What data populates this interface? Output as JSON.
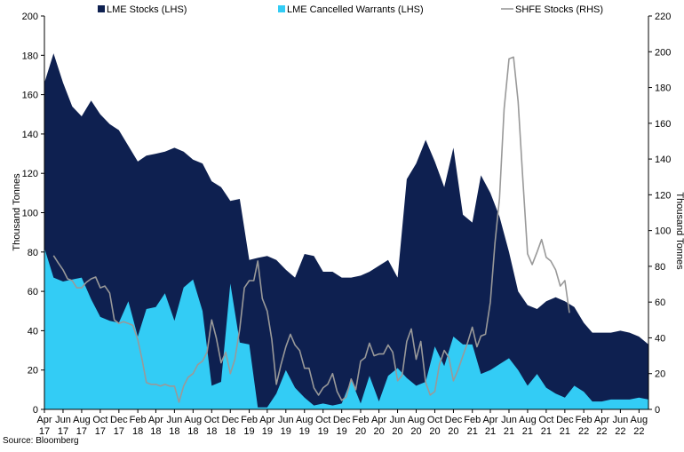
{
  "chart_data": {
    "type": "area",
    "source": "Source: Bloomberg",
    "ylabel_left": "Thousand Tonnes",
    "ylabel_right": "Thousand Tonnes",
    "ylim_left": [
      0,
      200
    ],
    "ylim_right": [
      0,
      220
    ],
    "yticks_left": [
      "0",
      "20",
      "40",
      "60",
      "80",
      "100",
      "120",
      "140",
      "160",
      "180",
      "200"
    ],
    "yticks_right": [
      "0",
      "20",
      "40",
      "60",
      "80",
      "100",
      "120",
      "140",
      "160",
      "180",
      "200",
      "220"
    ],
    "xtick_labels": [
      [
        "Apr",
        "17"
      ],
      [
        "Jun",
        "17"
      ],
      [
        "Aug",
        "17"
      ],
      [
        "Oct",
        "17"
      ],
      [
        "Dec",
        "17"
      ],
      [
        "Feb",
        "18"
      ],
      [
        "Apr",
        "18"
      ],
      [
        "Jun",
        "18"
      ],
      [
        "Aug",
        "18"
      ],
      [
        "Oct",
        "18"
      ],
      [
        "Dec",
        "18"
      ],
      [
        "Feb",
        "19"
      ],
      [
        "Apr",
        "19"
      ],
      [
        "Jun",
        "19"
      ],
      [
        "Aug",
        "19"
      ],
      [
        "Oct",
        "19"
      ],
      [
        "Dec",
        "19"
      ],
      [
        "Feb",
        "20"
      ],
      [
        "Apr",
        "20"
      ],
      [
        "Jun",
        "20"
      ],
      [
        "Aug",
        "20"
      ],
      [
        "Oct",
        "20"
      ],
      [
        "Dec",
        "20"
      ],
      [
        "Feb",
        "21"
      ],
      [
        "Apr",
        "21"
      ],
      [
        "Jun",
        "21"
      ],
      [
        "Aug",
        "21"
      ],
      [
        "Oct",
        "21"
      ],
      [
        "Dec",
        "21"
      ],
      [
        "Feb",
        "22"
      ],
      [
        "Apr",
        "22"
      ],
      [
        "Jun",
        "22"
      ],
      [
        "Aug",
        "22"
      ]
    ],
    "x_start": "2017-04",
    "x_end": "2022-09",
    "grid": false,
    "legend_position": "top",
    "series": [
      {
        "name": "LME Stocks (LHS)",
        "type": "area",
        "axis": "left",
        "color": "#0e2050",
        "points": [
          [
            "2017-04-01",
            166
          ],
          [
            "2017-05-01",
            181
          ],
          [
            "2017-06-01",
            166
          ],
          [
            "2017-07-01",
            154
          ],
          [
            "2017-08-01",
            149
          ],
          [
            "2017-09-01",
            157
          ],
          [
            "2017-10-01",
            150
          ],
          [
            "2017-11-01",
            145
          ],
          [
            "2017-12-01",
            142
          ],
          [
            "2018-01-01",
            134
          ],
          [
            "2018-02-01",
            126
          ],
          [
            "2018-03-01",
            129
          ],
          [
            "2018-04-01",
            130
          ],
          [
            "2018-05-01",
            131
          ],
          [
            "2018-06-01",
            133
          ],
          [
            "2018-07-01",
            131
          ],
          [
            "2018-08-01",
            127
          ],
          [
            "2018-09-01",
            125
          ],
          [
            "2018-10-01",
            116
          ],
          [
            "2018-11-01",
            113
          ],
          [
            "2018-12-01",
            106
          ],
          [
            "2019-01-01",
            107
          ],
          [
            "2019-02-01",
            76
          ],
          [
            "2019-03-01",
            77
          ],
          [
            "2019-04-01",
            78
          ],
          [
            "2019-05-01",
            76
          ],
          [
            "2019-06-01",
            71
          ],
          [
            "2019-07-01",
            67
          ],
          [
            "2019-08-01",
            79
          ],
          [
            "2019-09-01",
            78
          ],
          [
            "2019-10-01",
            70
          ],
          [
            "2019-11-01",
            70
          ],
          [
            "2019-12-01",
            67
          ],
          [
            "2020-01-01",
            67
          ],
          [
            "2020-02-01",
            68
          ],
          [
            "2020-03-01",
            70
          ],
          [
            "2020-04-01",
            73
          ],
          [
            "2020-05-01",
            76
          ],
          [
            "2020-06-01",
            67
          ],
          [
            "2020-07-01",
            117
          ],
          [
            "2020-08-01",
            125
          ],
          [
            "2020-09-01",
            137
          ],
          [
            "2020-10-01",
            126
          ],
          [
            "2020-11-01",
            113
          ],
          [
            "2020-12-01",
            133
          ],
          [
            "2021-01-01",
            99
          ],
          [
            "2021-02-01",
            95
          ],
          [
            "2021-03-01",
            119
          ],
          [
            "2021-04-01",
            110
          ],
          [
            "2021-05-01",
            98
          ],
          [
            "2021-06-01",
            80
          ],
          [
            "2021-07-01",
            60
          ],
          [
            "2021-08-01",
            53
          ],
          [
            "2021-09-01",
            51
          ],
          [
            "2021-10-01",
            55
          ],
          [
            "2021-11-01",
            57
          ],
          [
            "2021-12-01",
            55
          ],
          [
            "2022-01-01",
            52
          ],
          [
            "2022-02-01",
            44
          ],
          [
            "2022-03-01",
            39
          ],
          [
            "2022-04-01",
            39
          ],
          [
            "2022-05-01",
            39
          ],
          [
            "2022-06-01",
            40
          ],
          [
            "2022-07-01",
            39
          ],
          [
            "2022-08-01",
            37
          ],
          [
            "2022-09-01",
            33
          ]
        ]
      },
      {
        "name": "LME Cancelled Warrants (LHS)",
        "type": "area",
        "axis": "left",
        "color": "#33ccf5",
        "points": [
          [
            "2017-04-01",
            82
          ],
          [
            "2017-05-01",
            67
          ],
          [
            "2017-06-01",
            65
          ],
          [
            "2017-07-01",
            66
          ],
          [
            "2017-08-01",
            67
          ],
          [
            "2017-09-01",
            56
          ],
          [
            "2017-10-01",
            47
          ],
          [
            "2017-11-01",
            45
          ],
          [
            "2017-12-01",
            44
          ],
          [
            "2018-01-01",
            55
          ],
          [
            "2018-02-01",
            37
          ],
          [
            "2018-03-01",
            51
          ],
          [
            "2018-04-01",
            52
          ],
          [
            "2018-05-01",
            59
          ],
          [
            "2018-06-01",
            45
          ],
          [
            "2018-07-01",
            62
          ],
          [
            "2018-08-01",
            66
          ],
          [
            "2018-09-01",
            50
          ],
          [
            "2018-10-01",
            12
          ],
          [
            "2018-11-01",
            14
          ],
          [
            "2018-12-01",
            64
          ],
          [
            "2019-01-01",
            34
          ],
          [
            "2019-02-01",
            33
          ],
          [
            "2019-03-01",
            1
          ],
          [
            "2019-04-01",
            1
          ],
          [
            "2019-05-01",
            8
          ],
          [
            "2019-06-01",
            20
          ],
          [
            "2019-07-01",
            11
          ],
          [
            "2019-08-01",
            6
          ],
          [
            "2019-09-01",
            2
          ],
          [
            "2019-10-01",
            3
          ],
          [
            "2019-11-01",
            2
          ],
          [
            "2019-12-01",
            3
          ],
          [
            "2020-01-01",
            15
          ],
          [
            "2020-02-01",
            3
          ],
          [
            "2020-03-01",
            17
          ],
          [
            "2020-04-01",
            4
          ],
          [
            "2020-05-01",
            17
          ],
          [
            "2020-06-01",
            21
          ],
          [
            "2020-07-01",
            16
          ],
          [
            "2020-08-01",
            12
          ],
          [
            "2020-09-01",
            14
          ],
          [
            "2020-10-01",
            32
          ],
          [
            "2020-11-01",
            22
          ],
          [
            "2020-12-01",
            37
          ],
          [
            "2021-01-01",
            33
          ],
          [
            "2021-02-01",
            33
          ],
          [
            "2021-03-01",
            18
          ],
          [
            "2021-04-01",
            20
          ],
          [
            "2021-05-01",
            23
          ],
          [
            "2021-06-01",
            26
          ],
          [
            "2021-07-01",
            20
          ],
          [
            "2021-08-01",
            12
          ],
          [
            "2021-09-01",
            18
          ],
          [
            "2021-10-01",
            11
          ],
          [
            "2021-11-01",
            8
          ],
          [
            "2021-12-01",
            6
          ],
          [
            "2022-01-01",
            12
          ],
          [
            "2022-02-01",
            9
          ],
          [
            "2022-03-01",
            4
          ],
          [
            "2022-04-01",
            4
          ],
          [
            "2022-05-01",
            5
          ],
          [
            "2022-06-01",
            5
          ],
          [
            "2022-07-01",
            5
          ],
          [
            "2022-08-01",
            6
          ],
          [
            "2022-09-01",
            5
          ]
        ]
      },
      {
        "name": "SHFE Stocks (RHS)",
        "type": "line",
        "axis": "right",
        "color": "#999999",
        "points": [
          [
            "2017-05-01",
            86
          ],
          [
            "2017-05-16",
            82
          ],
          [
            "2017-06-01",
            78
          ],
          [
            "2017-06-16",
            73
          ],
          [
            "2017-07-01",
            72
          ],
          [
            "2017-07-16",
            68
          ],
          [
            "2017-08-01",
            68
          ],
          [
            "2017-08-16",
            71
          ],
          [
            "2017-09-01",
            73
          ],
          [
            "2017-09-16",
            74
          ],
          [
            "2017-10-01",
            68
          ],
          [
            "2017-10-16",
            69
          ],
          [
            "2017-11-01",
            65
          ],
          [
            "2017-11-16",
            50
          ],
          [
            "2017-12-01",
            48
          ],
          [
            "2017-12-16",
            49
          ],
          [
            "2018-01-01",
            48
          ],
          [
            "2018-01-16",
            47
          ],
          [
            "2018-02-01",
            39
          ],
          [
            "2018-02-16",
            27
          ],
          [
            "2018-03-01",
            15
          ],
          [
            "2018-03-16",
            14
          ],
          [
            "2018-04-01",
            14
          ],
          [
            "2018-04-16",
            13
          ],
          [
            "2018-05-01",
            14
          ],
          [
            "2018-05-16",
            13
          ],
          [
            "2018-06-01",
            13
          ],
          [
            "2018-06-16",
            4
          ],
          [
            "2018-07-01",
            13
          ],
          [
            "2018-07-16",
            18
          ],
          [
            "2018-08-01",
            20
          ],
          [
            "2018-08-16",
            25
          ],
          [
            "2018-09-01",
            27
          ],
          [
            "2018-09-16",
            32
          ],
          [
            "2018-10-01",
            50
          ],
          [
            "2018-10-16",
            40
          ],
          [
            "2018-11-01",
            26
          ],
          [
            "2018-11-16",
            32
          ],
          [
            "2018-12-01",
            20
          ],
          [
            "2018-12-16",
            28
          ],
          [
            "2019-01-01",
            45
          ],
          [
            "2019-01-16",
            68
          ],
          [
            "2019-02-01",
            72
          ],
          [
            "2019-02-16",
            72
          ],
          [
            "2019-03-01",
            83
          ],
          [
            "2019-03-16",
            62
          ],
          [
            "2019-04-01",
            55
          ],
          [
            "2019-04-16",
            39
          ],
          [
            "2019-05-01",
            14
          ],
          [
            "2019-05-16",
            25
          ],
          [
            "2019-06-01",
            35
          ],
          [
            "2019-06-16",
            42
          ],
          [
            "2019-07-01",
            36
          ],
          [
            "2019-07-16",
            33
          ],
          [
            "2019-08-01",
            23
          ],
          [
            "2019-08-16",
            23
          ],
          [
            "2019-09-01",
            12
          ],
          [
            "2019-09-16",
            8
          ],
          [
            "2019-10-01",
            12
          ],
          [
            "2019-10-16",
            14
          ],
          [
            "2019-11-01",
            20
          ],
          [
            "2019-11-16",
            10
          ],
          [
            "2019-12-01",
            5
          ],
          [
            "2019-12-16",
            7
          ],
          [
            "2020-01-01",
            17
          ],
          [
            "2020-01-16",
            11
          ],
          [
            "2020-02-01",
            27
          ],
          [
            "2020-02-16",
            29
          ],
          [
            "2020-03-01",
            37
          ],
          [
            "2020-03-16",
            30
          ],
          [
            "2020-04-01",
            31
          ],
          [
            "2020-04-16",
            31
          ],
          [
            "2020-05-01",
            36
          ],
          [
            "2020-05-16",
            32
          ],
          [
            "2020-06-01",
            16
          ],
          [
            "2020-06-16",
            19
          ],
          [
            "2020-07-01",
            38
          ],
          [
            "2020-07-16",
            45
          ],
          [
            "2020-08-01",
            28
          ],
          [
            "2020-08-16",
            38
          ],
          [
            "2020-09-01",
            15
          ],
          [
            "2020-09-16",
            8
          ],
          [
            "2020-10-01",
            10
          ],
          [
            "2020-10-16",
            25
          ],
          [
            "2020-11-01",
            33
          ],
          [
            "2020-11-16",
            29
          ],
          [
            "2020-12-01",
            16
          ],
          [
            "2020-12-16",
            22
          ],
          [
            "2021-01-01",
            30
          ],
          [
            "2021-01-16",
            37
          ],
          [
            "2021-02-01",
            46
          ],
          [
            "2021-02-16",
            35
          ],
          [
            "2021-03-01",
            41
          ],
          [
            "2021-03-16",
            42
          ],
          [
            "2021-04-01",
            60
          ],
          [
            "2021-04-16",
            93
          ],
          [
            "2021-05-01",
            118
          ],
          [
            "2021-05-16",
            168
          ],
          [
            "2021-06-01",
            196
          ],
          [
            "2021-06-16",
            197
          ],
          [
            "2021-07-01",
            172
          ],
          [
            "2021-07-16",
            130
          ],
          [
            "2021-08-01",
            87
          ],
          [
            "2021-08-16",
            81
          ],
          [
            "2021-09-01",
            88
          ],
          [
            "2021-09-16",
            95
          ],
          [
            "2021-10-01",
            85
          ],
          [
            "2021-10-16",
            83
          ],
          [
            "2021-11-01",
            78
          ],
          [
            "2021-11-16",
            69
          ],
          [
            "2021-12-01",
            72
          ],
          [
            "2021-12-16",
            54
          ]
        ]
      }
    ]
  }
}
